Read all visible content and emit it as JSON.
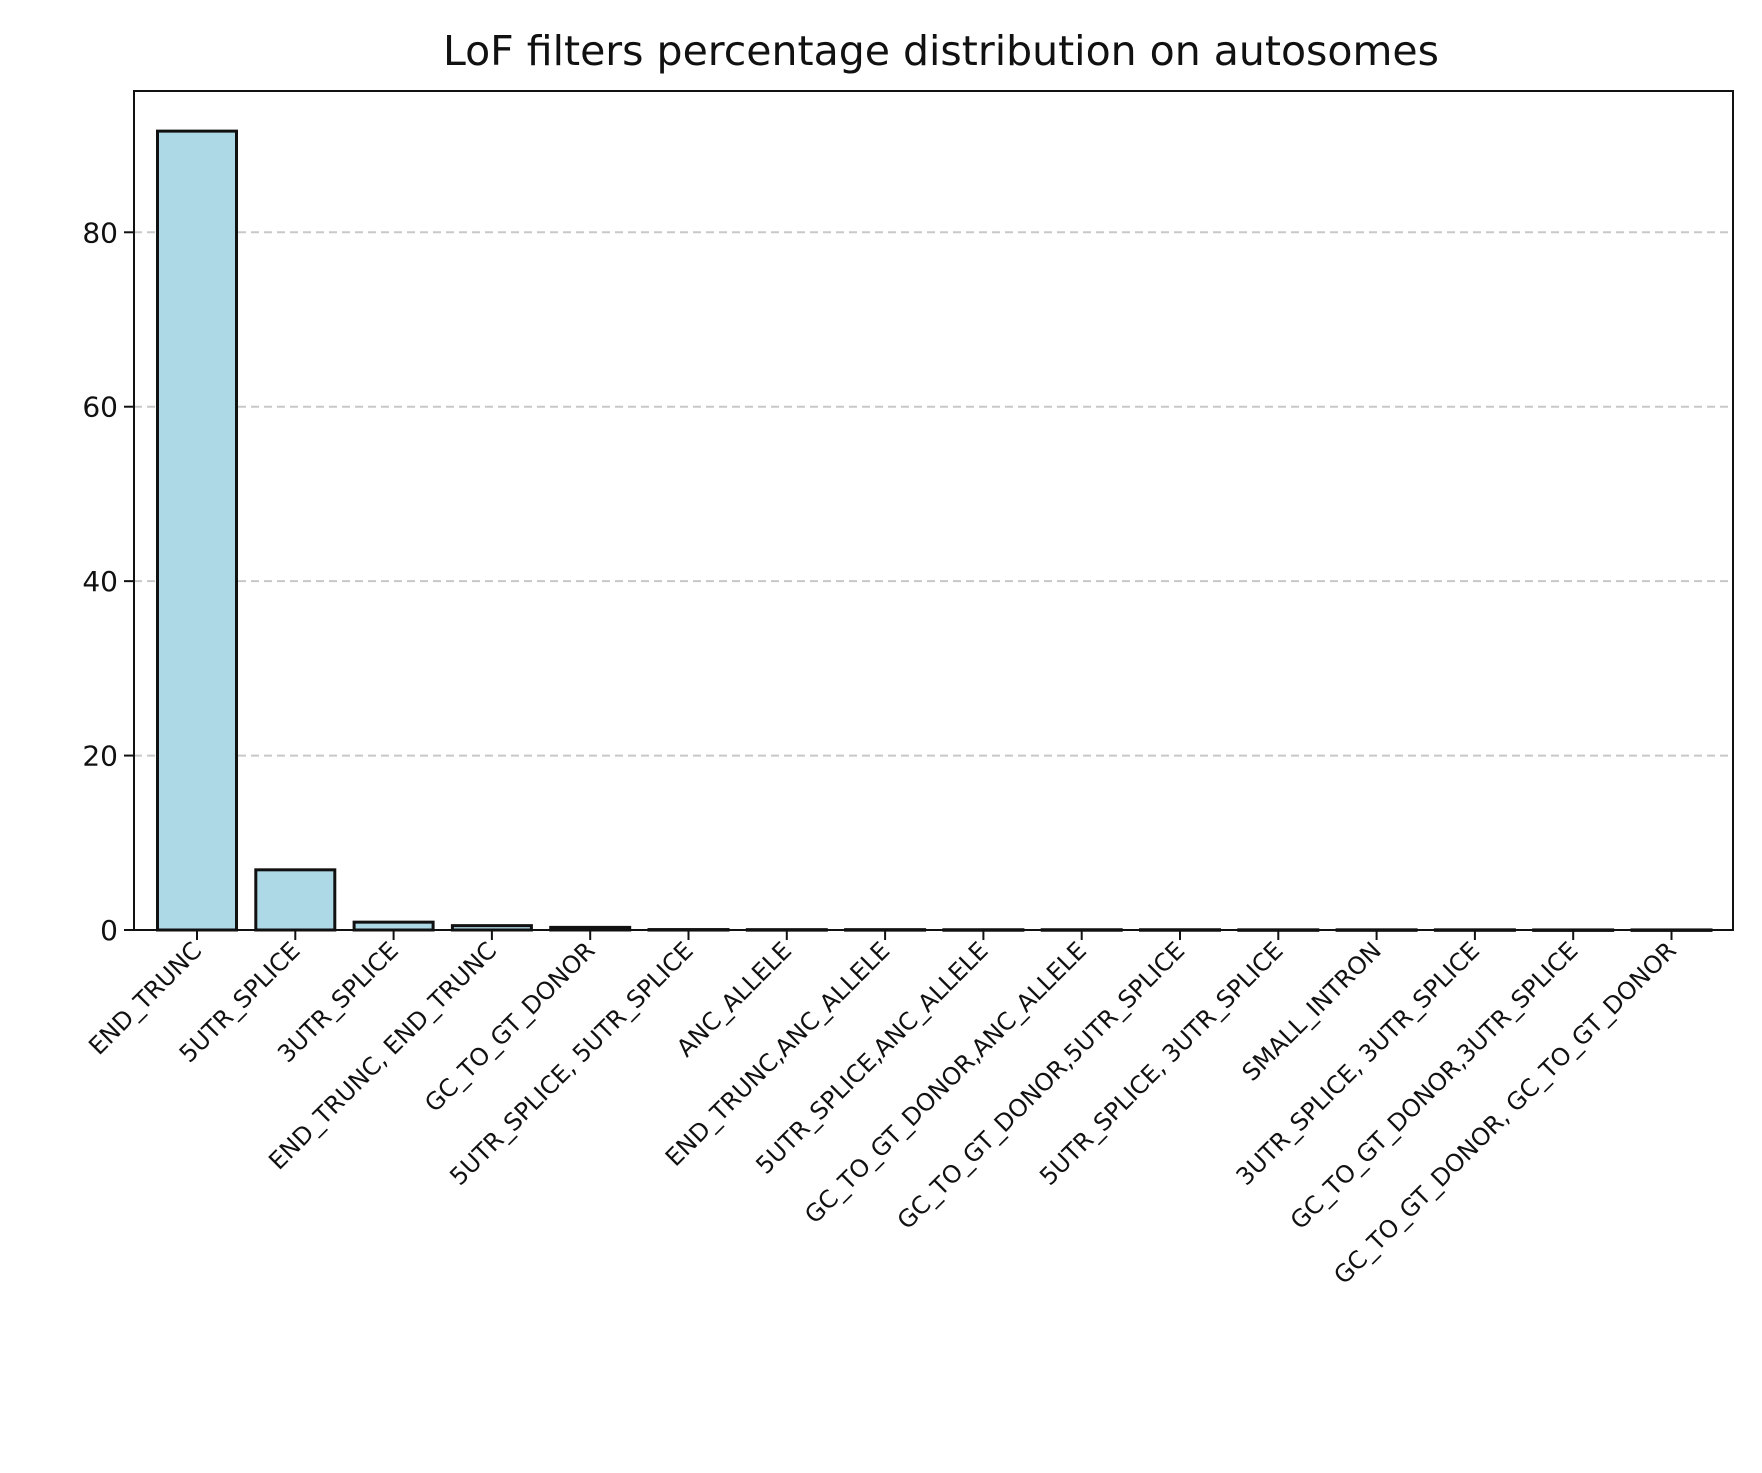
{
  "chart_data": {
    "type": "bar",
    "title": "LoF filters percentage distribution on autosomes",
    "xlabel": "",
    "ylabel": "",
    "categories": [
      "END_TRUNC",
      "5UTR_SPLICE",
      "3UTR_SPLICE",
      "END_TRUNC, END_TRUNC",
      "GC_TO_GT_DONOR",
      "5UTR_SPLICE, 5UTR_SPLICE",
      "ANC_ALLELE",
      "END_TRUNC,ANC_ALLELE",
      "5UTR_SPLICE,ANC_ALLELE",
      "GC_TO_GT_DONOR,ANC_ALLELE",
      "GC_TO_GT_DONOR,5UTR_SPLICE",
      "5UTR_SPLICE, 3UTR_SPLICE",
      "SMALL_INTRON",
      "3UTR_SPLICE, 3UTR_SPLICE",
      "GC_TO_GT_DONOR,3UTR_SPLICE",
      "GC_TO_GT_DONOR, GC_TO_GT_DONOR"
    ],
    "values": [
      91.6,
      6.9,
      0.9,
      0.5,
      0.3,
      0.05,
      0.04,
      0.04,
      0.03,
      0.03,
      0.03,
      0.02,
      0.02,
      0.02,
      0.01,
      0.01
    ],
    "ylim": [
      0,
      96.2
    ],
    "yticks": [
      0,
      20,
      40,
      60,
      80
    ],
    "grid": "y-dashed",
    "colors": {
      "bar_fill": "#add8e6",
      "bar_edge": "#111111",
      "grid": "#c8c8c8",
      "axis": "#111111"
    }
  }
}
